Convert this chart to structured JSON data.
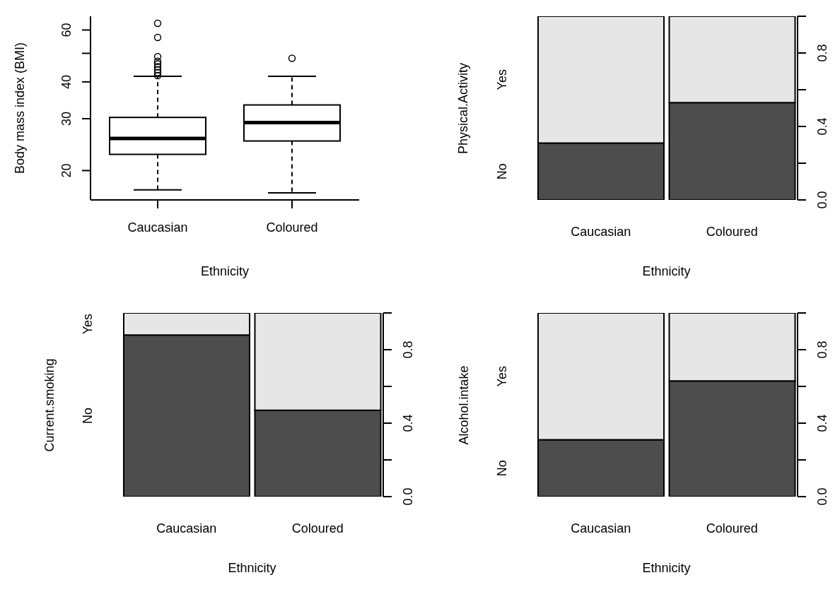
{
  "chart_data": [
    {
      "type": "box",
      "categories": [
        "Caucasian",
        "Coloured"
      ],
      "xlabel": "Ethnicity",
      "ylabel": "Body mass index (BMI)",
      "log": true,
      "ylim": [
        15.9,
        66.8
      ],
      "yticks": [
        20,
        30,
        40,
        {
          "value": 50,
          "label": null
        },
        60
      ],
      "boxes": [
        {
          "low": 17.2,
          "q1": 22.7,
          "median": 25.7,
          "q3": 30.3,
          "high": 41.8,
          "outliers": [
            42,
            43,
            44,
            45,
            46,
            47,
            48.7,
            56.6,
            63.2
          ]
        },
        {
          "low": 16.8,
          "q1": 25.2,
          "median": 29.1,
          "q3": 33.4,
          "high": 41.8,
          "outliers": [
            48.1
          ]
        }
      ]
    },
    {
      "type": "bar",
      "stacked": true,
      "categories": [
        "Caucasian",
        "Coloured"
      ],
      "xlabel": "Ethnicity",
      "ylabel": "Physical.Activity",
      "ylim": [
        0,
        1
      ],
      "yticks": [
        {
          "value": 0,
          "label": "0.0"
        },
        {
          "value": 0.2,
          "label": null
        },
        {
          "value": 0.4,
          "label": "0.4"
        },
        {
          "value": 0.6,
          "label": null
        },
        {
          "value": 0.8,
          "label": "0.8"
        },
        {
          "value": 1,
          "label": null
        }
      ],
      "series": [
        {
          "name": "No",
          "color": "#4d4d4d",
          "values": [
            0.31,
            0.53
          ]
        },
        {
          "name": "Yes",
          "color": "#e6e6e6",
          "values": [
            0.69,
            0.47
          ]
        }
      ]
    },
    {
      "type": "bar",
      "stacked": true,
      "categories": [
        "Caucasian",
        "Coloured"
      ],
      "xlabel": "Ethnicity",
      "ylabel": "Current.smoking",
      "ylim": [
        0,
        1
      ],
      "yticks": [
        {
          "value": 0,
          "label": "0.0"
        },
        {
          "value": 0.2,
          "label": null
        },
        {
          "value": 0.4,
          "label": "0.4"
        },
        {
          "value": 0.6,
          "label": null
        },
        {
          "value": 0.8,
          "label": "0.8"
        },
        {
          "value": 1,
          "label": null
        }
      ],
      "series": [
        {
          "name": "No",
          "color": "#4d4d4d",
          "values": [
            0.88,
            0.47
          ]
        },
        {
          "name": "Yes",
          "color": "#e6e6e6",
          "values": [
            0.12,
            0.53
          ]
        }
      ]
    },
    {
      "type": "bar",
      "stacked": true,
      "categories": [
        "Caucasian",
        "Coloured"
      ],
      "xlabel": "Ethnicity",
      "ylabel": "Alcohol.intake",
      "ylim": [
        0,
        1
      ],
      "yticks": [
        {
          "value": 0,
          "label": "0.0"
        },
        {
          "value": 0.2,
          "label": null
        },
        {
          "value": 0.4,
          "label": "0.4"
        },
        {
          "value": 0.6,
          "label": null
        },
        {
          "value": 0.8,
          "label": "0.8"
        },
        {
          "value": 1,
          "label": null
        }
      ],
      "series": [
        {
          "name": "No",
          "color": "#4d4d4d",
          "values": [
            0.31,
            0.63
          ]
        },
        {
          "name": "Yes",
          "color": "#e6e6e6",
          "values": [
            0.69,
            0.37
          ]
        }
      ]
    }
  ]
}
